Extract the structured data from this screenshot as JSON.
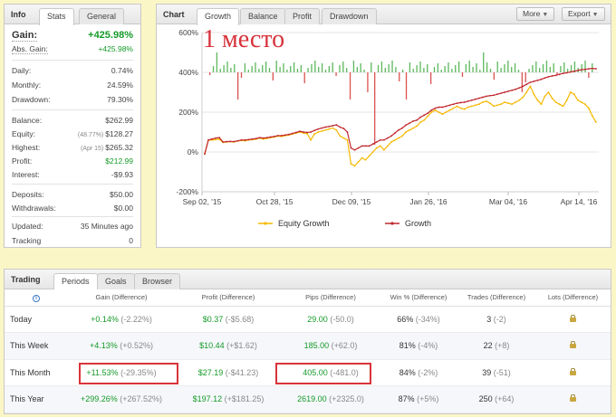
{
  "overlay_label": "1 место",
  "info": {
    "title": "Info",
    "tabs": [
      "Stats",
      "General"
    ],
    "gain": {
      "label": "Gain:",
      "value": "+425.98%"
    },
    "abs_gain": {
      "label": "Abs. Gain:",
      "value": "+425.98%"
    },
    "daily": {
      "label": "Daily:",
      "value": "0.74%"
    },
    "monthly": {
      "label": "Monthly:",
      "value": "24.59%"
    },
    "drawdown": {
      "label": "Drawdown:",
      "value": "79.30%"
    },
    "balance": {
      "label": "Balance:",
      "value": "$262.99"
    },
    "equity": {
      "label": "Equity:",
      "sub": "(48.77%)",
      "value": "$128.27"
    },
    "highest": {
      "label": "Highest:",
      "sub": "(Apr 15)",
      "value": "$265.32"
    },
    "profit": {
      "label": "Profit:",
      "value": "$212.99"
    },
    "interest": {
      "label": "Interest:",
      "value": "-$9.93"
    },
    "deposits": {
      "label": "Deposits:",
      "value": "$50.00"
    },
    "withdrawals": {
      "label": "Withdrawals:",
      "value": "$0.00"
    },
    "updated": {
      "label": "Updated:",
      "value": "35 Minutes ago"
    },
    "tracking": {
      "label": "Tracking",
      "value": "0"
    }
  },
  "chart_panel": {
    "title": "Chart",
    "tabs": [
      "Growth",
      "Balance",
      "Profit",
      "Drawdown"
    ],
    "more_label": "More",
    "export_label": "Export"
  },
  "chart_data": {
    "type": "line",
    "y_ticks": [
      "600%",
      "400%",
      "200%",
      "0%",
      "-200%"
    ],
    "ylim": [
      -200,
      600
    ],
    "x_ticks": [
      "Sep 02, '15",
      "Oct 28, '15",
      "Dec 09, '15",
      "Jan 26, '16",
      "Mar 04, '16",
      "Apr 14, '16"
    ],
    "legend_position": "bottom",
    "series": [
      {
        "name": "Equity Growth",
        "color": "#f5b800",
        "values": [
          -10,
          60,
          60,
          62,
          64,
          48,
          50,
          52,
          50,
          55,
          58,
          56,
          60,
          62,
          64,
          70,
          65,
          68,
          72,
          75,
          80,
          78,
          82,
          85,
          90,
          95,
          100,
          95,
          92,
          60,
          90,
          100,
          105,
          110,
          115,
          120,
          110,
          80,
          70,
          60,
          -60,
          -70,
          -50,
          -30,
          -40,
          -20,
          0,
          20,
          30,
          10,
          30,
          50,
          60,
          70,
          80,
          100,
          110,
          120,
          130,
          150,
          160,
          180,
          200,
          210,
          200,
          190,
          200,
          210,
          220,
          230,
          220,
          215,
          225,
          230,
          235,
          240,
          250,
          255,
          245,
          230,
          235,
          240,
          250,
          245,
          240,
          250,
          260,
          275,
          300,
          330,
          290,
          260,
          240,
          280,
          300,
          270,
          250,
          240,
          230,
          260,
          300,
          290,
          260,
          250,
          240,
          220,
          180,
          150
        ]
      },
      {
        "name": "Growth",
        "color": "#c0272d",
        "values": [
          -10,
          60,
          65,
          70,
          72,
          50,
          52,
          53,
          52,
          56,
          60,
          60,
          62,
          65,
          67,
          72,
          70,
          72,
          75,
          78,
          82,
          82,
          85,
          88,
          93,
          98,
          104,
          100,
          98,
          100,
          108,
          115,
          120,
          125,
          128,
          132,
          136,
          125,
          118,
          100,
          20,
          10,
          20,
          30,
          30,
          30,
          40,
          50,
          60,
          60,
          70,
          80,
          95,
          110,
          120,
          135,
          145,
          155,
          160,
          175,
          185,
          195,
          210,
          220,
          225,
          225,
          230,
          235,
          240,
          245,
          248,
          250,
          255,
          260,
          265,
          270,
          275,
          280,
          283,
          285,
          290,
          295,
          300,
          305,
          310,
          315,
          322,
          330,
          340,
          350,
          355,
          360,
          365,
          372,
          378,
          382,
          385,
          390,
          395,
          398,
          402,
          405,
          410,
          413,
          415,
          418,
          420,
          418
        ]
      }
    ],
    "bars_positive_color": "#5cb85c",
    "bars_negative_color": "#d9534f"
  },
  "trading": {
    "title": "Trading",
    "tabs": [
      "Periods",
      "Goals",
      "Browser"
    ],
    "headers": [
      "Gain (Difference)",
      "Profit (Difference)",
      "Pips (Difference)",
      "Win % (Difference)",
      "Trades (Difference)",
      "Lots (Difference)"
    ],
    "rows": [
      {
        "period": "Today",
        "gain": "+0.14%",
        "gain_diff": "(-2.22%)",
        "profit": "$0.37",
        "profit_diff": "(-$5.68)",
        "pips": "29.00",
        "pips_diff": "(-50.0)",
        "win": "66%",
        "win_diff": "(-34%)",
        "trades": "3",
        "trades_diff": "(-2)"
      },
      {
        "period": "This Week",
        "gain": "+4.13%",
        "gain_diff": "(+0.52%)",
        "profit": "$10.44",
        "profit_diff": "(+$1.62)",
        "pips": "185.00",
        "pips_diff": "(+62.0)",
        "win": "81%",
        "win_diff": "(-4%)",
        "trades": "22",
        "trades_diff": "(+8)"
      },
      {
        "period": "This Month",
        "gain": "+11.53%",
        "gain_diff": "(-29.35%)",
        "profit": "$27.19",
        "profit_diff": "(-$41.23)",
        "pips": "405.00",
        "pips_diff": "(-481.0)",
        "win": "84%",
        "win_diff": "(-2%)",
        "trades": "39",
        "trades_diff": "(-51)"
      },
      {
        "period": "This Year",
        "gain": "+299.26%",
        "gain_diff": "(+267.52%)",
        "profit": "$197.12",
        "profit_diff": "(+$181.25)",
        "pips": "2619.00",
        "pips_diff": "(+2325.0)",
        "win": "87%",
        "win_diff": "(+5%)",
        "trades": "250",
        "trades_diff": "(+64)"
      }
    ]
  }
}
